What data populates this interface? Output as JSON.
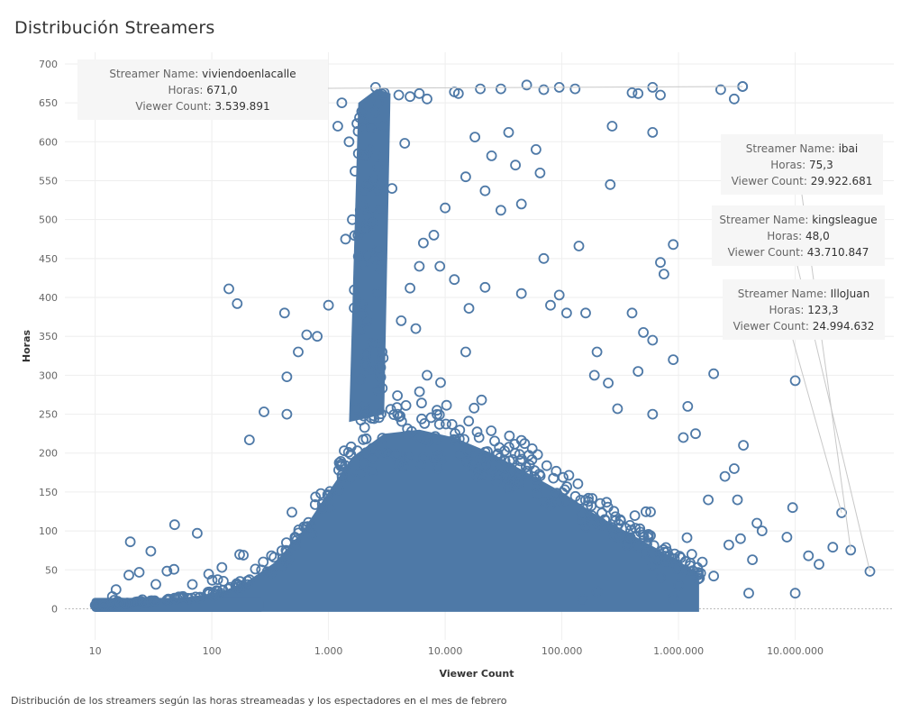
{
  "chart_data": {
    "type": "scatter",
    "title": "Distribución Streamers",
    "caption": "Distribución de los streamers según las horas streameadas y los espectadores en el mes de febrero",
    "xlabel": "Viewer Count",
    "ylabel": "Horas",
    "x_scale": "log",
    "xlim": [
      5.5,
      70000000
    ],
    "ylim": [
      -40,
      715
    ],
    "x_ticks": [
      {
        "value": 10,
        "label": "10"
      },
      {
        "value": 100,
        "label": "100"
      },
      {
        "value": 1000,
        "label": "1.000"
      },
      {
        "value": 10000,
        "label": "10.000"
      },
      {
        "value": 100000,
        "label": "100.000"
      },
      {
        "value": 1000000,
        "label": "1.000.000"
      },
      {
        "value": 10000000,
        "label": "10.000.000"
      }
    ],
    "y_ticks": [
      {
        "value": 0,
        "label": "0"
      },
      {
        "value": 50,
        "label": "50"
      },
      {
        "value": 100,
        "label": "100"
      },
      {
        "value": 150,
        "label": "150"
      },
      {
        "value": 200,
        "label": "200"
      },
      {
        "value": 250,
        "label": "250"
      },
      {
        "value": 300,
        "label": "300"
      },
      {
        "value": 350,
        "label": "350"
      },
      {
        "value": 400,
        "label": "400"
      },
      {
        "value": 450,
        "label": "450"
      },
      {
        "value": 500,
        "label": "500"
      },
      {
        "value": 550,
        "label": "550"
      },
      {
        "value": 600,
        "label": "600"
      },
      {
        "value": 650,
        "label": "650"
      },
      {
        "value": 700,
        "label": "700"
      }
    ],
    "grid": true,
    "marker_color": "#4e79a7",
    "points": [
      [
        140,
        411
      ],
      [
        165,
        392
      ],
      [
        20,
        86
      ],
      [
        48,
        108
      ],
      [
        30,
        74
      ],
      [
        75,
        97
      ],
      [
        280,
        253
      ],
      [
        210,
        217
      ],
      [
        440,
        298
      ],
      [
        440,
        250
      ],
      [
        3539891,
        671
      ],
      [
        3000000,
        655
      ],
      [
        2300000,
        667
      ],
      [
        1800000,
        140
      ],
      [
        10000000,
        293
      ],
      [
        10000000,
        20
      ],
      [
        8500000,
        92
      ],
      [
        13000000,
        68
      ],
      [
        16000000,
        57
      ],
      [
        21000000,
        79
      ],
      [
        9500000,
        130
      ],
      [
        4000000,
        20
      ],
      [
        4300000,
        63
      ],
      [
        3600000,
        210
      ],
      [
        2000000,
        302
      ],
      [
        1200000,
        260
      ],
      [
        900000,
        468
      ],
      [
        700000,
        445
      ],
      [
        750000,
        430
      ],
      [
        600000,
        612
      ],
      [
        270000,
        620
      ],
      [
        260000,
        545
      ],
      [
        140000,
        466
      ],
      [
        700000,
        660
      ],
      [
        600000,
        670
      ],
      [
        450000,
        662
      ],
      [
        400000,
        663
      ],
      [
        130000,
        668
      ],
      [
        95000,
        670
      ],
      [
        70000,
        667
      ],
      [
        50000,
        673
      ],
      [
        30000,
        668
      ],
      [
        20000,
        668
      ],
      [
        13000,
        662
      ],
      [
        12000,
        664
      ],
      [
        18000,
        606
      ],
      [
        25000,
        582
      ],
      [
        35000,
        612
      ],
      [
        40000,
        570
      ],
      [
        60000,
        590
      ],
      [
        65000,
        560
      ],
      [
        45000,
        520
      ],
      [
        30000,
        512
      ],
      [
        15000,
        555
      ],
      [
        22000,
        537
      ],
      [
        10000,
        515
      ],
      [
        8000,
        480
      ],
      [
        9000,
        440
      ],
      [
        12000,
        423
      ],
      [
        22000,
        413
      ],
      [
        16000,
        386
      ],
      [
        15000,
        330
      ],
      [
        45000,
        405
      ],
      [
        80000,
        390
      ],
      [
        70000,
        450
      ],
      [
        95000,
        403
      ],
      [
        110000,
        380
      ],
      [
        160000,
        380
      ],
      [
        200000,
        330
      ],
      [
        190000,
        300
      ],
      [
        250000,
        290
      ],
      [
        300000,
        257
      ],
      [
        600000,
        250
      ],
      [
        400000,
        380
      ],
      [
        500000,
        355
      ],
      [
        600000,
        345
      ],
      [
        450000,
        305
      ],
      [
        900000,
        320
      ],
      [
        1100000,
        220
      ],
      [
        1400000,
        225
      ],
      [
        2500000,
        170
      ],
      [
        3000000,
        180
      ],
      [
        3200000,
        140
      ],
      [
        4700000,
        110
      ],
      [
        5200000,
        100
      ],
      [
        3400000,
        90
      ],
      [
        2700000,
        82
      ],
      [
        1600000,
        60
      ],
      [
        2000000,
        42
      ],
      [
        1300000,
        70
      ],
      [
        1000000,
        30
      ],
      [
        900000,
        13
      ],
      [
        700000,
        40
      ],
      [
        600000,
        55
      ],
      [
        200000,
        22
      ],
      [
        150000,
        12
      ],
      [
        3000,
        663
      ],
      [
        4000,
        660
      ],
      [
        5000,
        658
      ],
      [
        6000,
        662
      ],
      [
        7000,
        655
      ],
      [
        3000,
        620
      ],
      [
        4500,
        598
      ],
      [
        3500,
        540
      ],
      [
        6000,
        440
      ],
      [
        5000,
        412
      ],
      [
        6500,
        470
      ],
      [
        4200,
        370
      ],
      [
        5600,
        360
      ],
      [
        7000,
        300
      ],
      [
        8500,
        255
      ],
      [
        2500,
        340
      ],
      [
        2800,
        310
      ],
      [
        1000,
        390
      ],
      [
        800,
        350
      ],
      [
        650,
        352
      ],
      [
        550,
        330
      ],
      [
        420,
        380
      ],
      [
        1400,
        475
      ],
      [
        1200,
        620
      ],
      [
        1300,
        650
      ],
      [
        1500,
        600
      ],
      [
        1800,
        585
      ],
      [
        1600,
        500
      ],
      [
        2200,
        505
      ]
    ],
    "tooltips": [
      {
        "name_label": "Streamer Name:",
        "name": "viviendoenlacalle",
        "horas_label": "Horas:",
        "horas": "671,0",
        "viewers_label": "Viewer Count:",
        "viewers": "3.539.891",
        "point": [
          3539891,
          671
        ]
      },
      {
        "name_label": "Streamer Name:",
        "name": "ibai",
        "horas_label": "Horas:",
        "horas": "75,3",
        "viewers_label": "Viewer Count:",
        "viewers": "29.922.681",
        "point": [
          29922681,
          75.3
        ]
      },
      {
        "name_label": "Streamer Name:",
        "name": "kingsleague",
        "horas_label": "Horas:",
        "horas": "48,0",
        "viewers_label": "Viewer Count:",
        "viewers": "43.710.847",
        "point": [
          43710847,
          48
        ]
      },
      {
        "name_label": "Streamer Name:",
        "name": "IlloJuan",
        "horas_label": "Horas:",
        "horas": "123,3",
        "viewers_label": "Viewer Count:",
        "viewers": "24.994.632",
        "point": [
          24994632,
          123.3
        ]
      }
    ]
  }
}
